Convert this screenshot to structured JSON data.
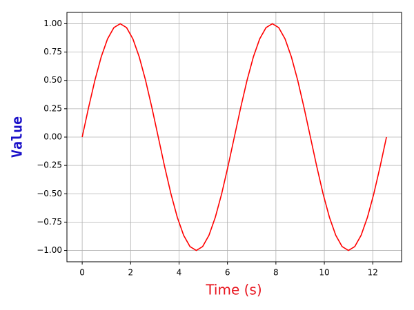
{
  "chart_data": {
    "type": "line",
    "xlabel": "Time (s)",
    "ylabel": "Value",
    "xlabel_color": "#e8141e",
    "ylabel_color": "#1a10c8",
    "x": [
      0,
      0.262,
      0.524,
      0.785,
      1.047,
      1.309,
      1.571,
      1.833,
      2.094,
      2.356,
      2.618,
      2.88,
      3.142,
      3.403,
      3.665,
      3.927,
      4.189,
      4.451,
      4.712,
      4.974,
      5.236,
      5.498,
      5.76,
      6.021,
      6.283,
      6.545,
      6.807,
      7.069,
      7.33,
      7.592,
      7.854,
      8.116,
      8.378,
      8.639,
      8.901,
      9.163,
      9.425,
      9.687,
      9.948,
      10.21,
      10.472,
      10.734,
      10.996,
      11.257,
      11.519,
      11.781,
      12.043,
      12.305,
      12.566
    ],
    "series": [
      {
        "color": "#ff0000",
        "values": [
          0,
          0.259,
          0.5,
          0.707,
          0.866,
          0.966,
          1,
          0.966,
          0.866,
          0.707,
          0.5,
          0.259,
          0,
          -0.259,
          -0.5,
          -0.707,
          -0.866,
          -0.966,
          -1,
          -0.966,
          -0.866,
          -0.707,
          -0.5,
          -0.259,
          0,
          0.259,
          0.5,
          0.707,
          0.866,
          0.966,
          1,
          0.966,
          0.866,
          0.707,
          0.5,
          0.259,
          0,
          -0.259,
          -0.5,
          -0.707,
          -0.866,
          -0.966,
          -1,
          -0.966,
          -0.866,
          -0.707,
          -0.5,
          -0.259,
          0
        ]
      }
    ],
    "xlim": [
      -0.63,
      13.19
    ],
    "ylim": [
      -1.1,
      1.1
    ],
    "xticks": [
      0,
      2,
      4,
      6,
      8,
      10,
      12
    ],
    "yticks": [
      {
        "value": -1,
        "label": "−1.00"
      },
      {
        "value": -0.75,
        "label": "−0.75"
      },
      {
        "value": -0.5,
        "label": "−0.50"
      },
      {
        "value": -0.25,
        "label": "−0.25"
      },
      {
        "value": 0,
        "label": "0.00"
      },
      {
        "value": 0.25,
        "label": "0.25"
      },
      {
        "value": 0.5,
        "label": "0.50"
      },
      {
        "value": 0.75,
        "label": "0.75"
      },
      {
        "value": 1,
        "label": "1.00"
      }
    ],
    "grid": true
  }
}
